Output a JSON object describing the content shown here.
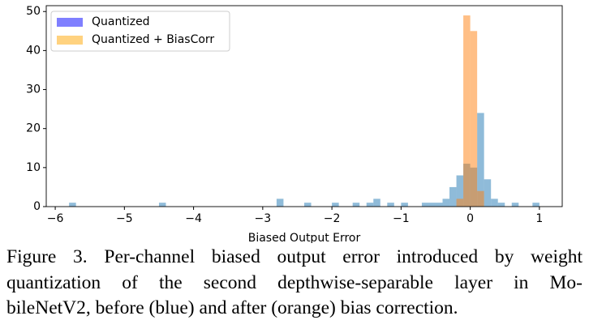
{
  "chart_data": {
    "type": "histogram",
    "x_label": "Biased Output Error",
    "xlim": [
      -6.13,
      1.33
    ],
    "ylim": [
      0,
      51.5
    ],
    "xticks": [
      {
        "value": -6,
        "label": "−6"
      },
      {
        "value": -5,
        "label": "−5"
      },
      {
        "value": -4,
        "label": "−4"
      },
      {
        "value": -3,
        "label": "−3"
      },
      {
        "value": -2,
        "label": "−2"
      },
      {
        "value": -1,
        "label": "−1"
      },
      0,
      1
    ],
    "yticks": [
      0,
      10,
      20,
      30,
      40,
      50
    ],
    "legend_position": "upper left",
    "series": [
      {
        "name": "Quantized",
        "color": "#1f77b4",
        "legend_color": "#0000ff",
        "opacity": 0.5,
        "bins": [
          -5.8,
          -5.7,
          -5.6,
          -5.5,
          -5.4,
          -5.3,
          -5.2,
          -5.1,
          -5.0,
          -4.9,
          -4.8,
          -4.7,
          -4.6,
          -4.5,
          -4.4,
          -4.3,
          -4.2,
          -4.1,
          -4.0,
          -3.9,
          -3.8,
          -3.7,
          -3.6,
          -3.5,
          -3.4,
          -3.3,
          -3.2,
          -3.1,
          -3.0,
          -2.9,
          -2.8,
          -2.7,
          -2.6,
          -2.5,
          -2.4,
          -2.3,
          -2.2,
          -2.1,
          -2.0,
          -1.9,
          -1.8,
          -1.7,
          -1.6,
          -1.5,
          -1.4,
          -1.3,
          -1.2,
          -1.1,
          -1.0,
          -0.9,
          -0.8,
          -0.7,
          -0.6,
          -0.5,
          -0.4,
          -0.3,
          -0.2,
          -0.1,
          0.0,
          0.1,
          0.2,
          0.3,
          0.4,
          0.5,
          0.6,
          0.7,
          0.8,
          0.9,
          1.0
        ],
        "values": [
          1,
          0,
          0,
          0,
          0,
          0,
          0,
          0,
          0,
          0,
          0,
          0,
          0,
          1,
          0,
          0,
          0,
          0,
          0,
          0,
          0,
          0,
          0,
          0,
          0,
          0,
          0,
          0,
          0,
          0,
          2,
          0,
          0,
          0,
          1,
          0,
          0,
          0,
          1,
          0,
          0,
          1,
          0,
          1,
          2,
          0,
          1,
          0,
          1,
          0,
          0,
          1,
          1,
          1,
          2,
          5,
          8,
          11,
          10,
          24,
          7,
          2,
          1,
          0,
          1,
          0,
          0,
          1
        ]
      },
      {
        "name": "Quantized + BiasCorr",
        "color": "#ff7f0e",
        "legend_color": "#ffa500",
        "opacity": 0.5,
        "bins": [
          -0.2,
          -0.1,
          0.0,
          0.1,
          0.2
        ],
        "values": [
          2,
          49,
          45,
          4
        ]
      }
    ]
  },
  "caption": {
    "lines": [
      "Figure 3. Per-channel biased output error introduced by weight",
      "quantization of the second depthwise-separable layer in Mo-",
      "bileNetV2, before (blue) and after (orange) bias correction."
    ]
  }
}
